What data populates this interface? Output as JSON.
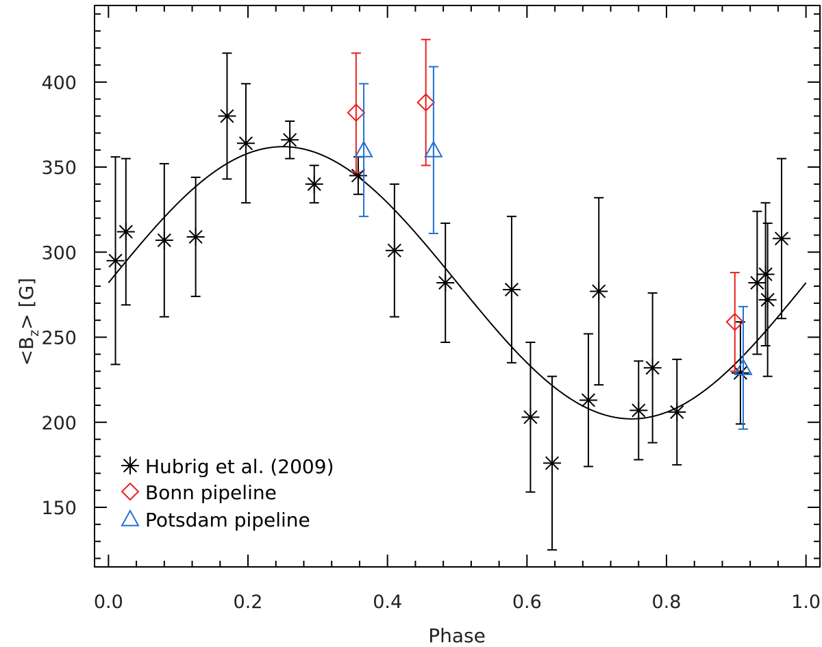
{
  "chart_data": {
    "type": "scatter",
    "title": "",
    "xlabel": "Phase",
    "ylabel": {
      "main": "<B",
      "sub": "z",
      "tail": "> [G]"
    },
    "xlim": [
      -0.02,
      1.02
    ],
    "ylim": [
      115,
      445
    ],
    "xticks": [
      0.0,
      0.2,
      0.4,
      0.6,
      0.8,
      1.0
    ],
    "xtick_labels": [
      "0.0",
      "0.2",
      "0.4",
      "0.6",
      "0.8",
      "1.0"
    ],
    "yticks": [
      150,
      200,
      250,
      300,
      350,
      400
    ],
    "ytick_labels": [
      "150",
      "200",
      "250",
      "300",
      "350",
      "400"
    ],
    "grid": false,
    "legend_position": "bottom-left",
    "fit_curve": {
      "kind": "sinusoid",
      "mean": 282,
      "amplitude": 80,
      "phase_of_max": 0.25
    },
    "series": [
      {
        "name": "Hubrig et al. (2009)",
        "marker": "asterisk",
        "color": "#000000",
        "points": [
          {
            "x": 0.01,
            "y": 295,
            "err": 61
          },
          {
            "x": 0.025,
            "y": 312,
            "err": 43
          },
          {
            "x": 0.08,
            "y": 307,
            "err": 45
          },
          {
            "x": 0.125,
            "y": 309,
            "err": 35
          },
          {
            "x": 0.17,
            "y": 380,
            "err": 37
          },
          {
            "x": 0.197,
            "y": 364,
            "err": 35
          },
          {
            "x": 0.26,
            "y": 366,
            "err": 11
          },
          {
            "x": 0.295,
            "y": 340,
            "err": 11
          },
          {
            "x": 0.358,
            "y": 345,
            "err": 11
          },
          {
            "x": 0.41,
            "y": 301,
            "err": 39
          },
          {
            "x": 0.483,
            "y": 282,
            "err": 35
          },
          {
            "x": 0.578,
            "y": 278,
            "err": 43
          },
          {
            "x": 0.605,
            "y": 203,
            "err": 44
          },
          {
            "x": 0.636,
            "y": 176,
            "err": 51
          },
          {
            "x": 0.688,
            "y": 213,
            "err": 39
          },
          {
            "x": 0.703,
            "y": 277,
            "err": 55
          },
          {
            "x": 0.76,
            "y": 207,
            "err": 29
          },
          {
            "x": 0.78,
            "y": 232,
            "err": 44
          },
          {
            "x": 0.815,
            "y": 206,
            "err": 31
          },
          {
            "x": 0.906,
            "y": 229,
            "err": 30
          },
          {
            "x": 0.93,
            "y": 282,
            "err": 42
          },
          {
            "x": 0.942,
            "y": 287,
            "err": 42
          },
          {
            "x": 0.945,
            "y": 272,
            "err": 45
          },
          {
            "x": 0.965,
            "y": 308,
            "err": 47
          }
        ]
      },
      {
        "name": "Bonn pipeline",
        "marker": "diamond",
        "color": "#e8201c",
        "points": [
          {
            "x": 0.355,
            "y": 382,
            "err": 35
          },
          {
            "x": 0.455,
            "y": 388,
            "err": 37
          },
          {
            "x": 0.898,
            "y": 259,
            "err": 29
          }
        ]
      },
      {
        "name": "Potsdam pipeline",
        "marker": "triangle",
        "color": "#1f6fd6",
        "points": [
          {
            "x": 0.366,
            "y": 360,
            "err": 39
          },
          {
            "x": 0.466,
            "y": 360,
            "err": 49
          },
          {
            "x": 0.91,
            "y": 232,
            "err": 36
          }
        ]
      }
    ]
  }
}
